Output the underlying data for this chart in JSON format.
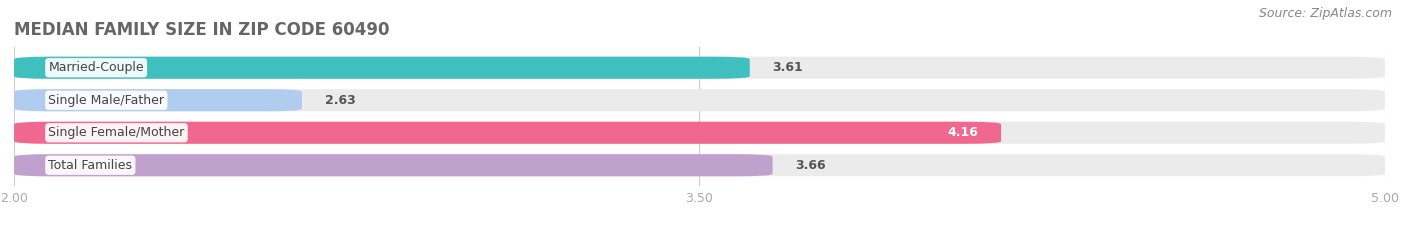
{
  "title": "MEDIAN FAMILY SIZE IN ZIP CODE 60490",
  "source": "Source: ZipAtlas.com",
  "categories": [
    "Married-Couple",
    "Single Male/Father",
    "Single Female/Mother",
    "Total Families"
  ],
  "values": [
    3.61,
    2.63,
    4.16,
    3.66
  ],
  "bar_colors": [
    "#40bfbf",
    "#b0ccee",
    "#f06890",
    "#c0a0cc"
  ],
  "bar_bg_color": "#ebebeb",
  "xlim": [
    2.0,
    5.0
  ],
  "xticks": [
    2.0,
    3.5,
    5.0
  ],
  "xtick_labels": [
    "2.00",
    "3.50",
    "5.00"
  ],
  "bar_height": 0.68,
  "label_fontsize": 9,
  "value_fontsize": 9,
  "title_fontsize": 12,
  "source_fontsize": 9,
  "background_color": "#ffffff",
  "tick_color": "#aaaaaa",
  "title_color": "#666666",
  "value_label_colors": [
    "#555555",
    "#555555",
    "#ffffff",
    "#555555"
  ],
  "value_inside": [
    false,
    false,
    true,
    false
  ]
}
